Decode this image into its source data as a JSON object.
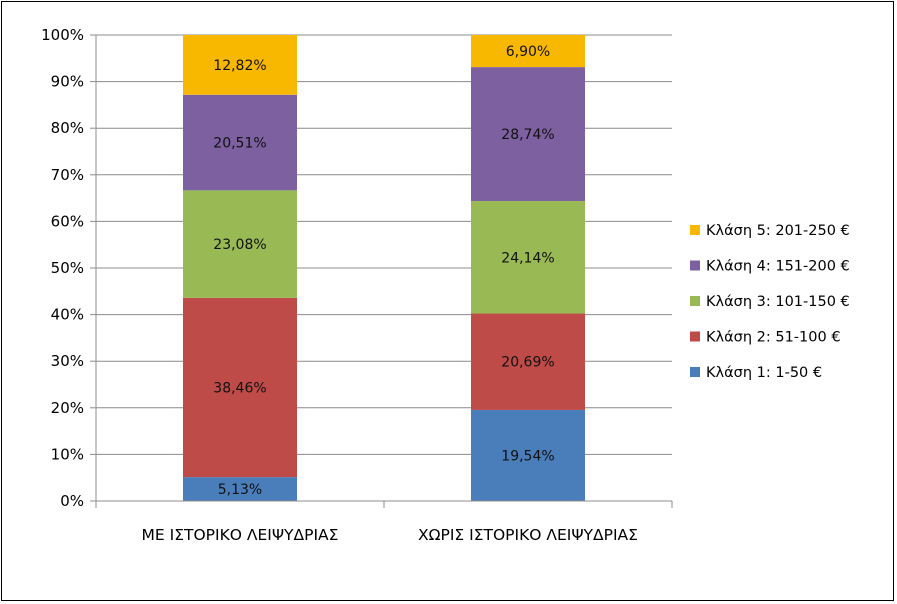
{
  "chart_data": {
    "type": "bar",
    "stacked": true,
    "percent": true,
    "categories": [
      "ΜΕ ΙΣΤΟΡΙΚΟ ΛΕΙΨΥΔΡΙΑΣ",
      "ΧΩΡΙΣ ΙΣΤΟΡΙΚΟ ΛΕΙΨΥΔΡΙΑΣ"
    ],
    "series": [
      {
        "name": "Κλάση 1: 1-50 €",
        "values": [
          5.13,
          19.54
        ],
        "labels": [
          "5,13%",
          "19,54%"
        ],
        "color": "#4a7ebb"
      },
      {
        "name": "Κλάση 2: 51-100 €",
        "values": [
          38.46,
          20.69
        ],
        "labels": [
          "38,46%",
          "20,69%"
        ],
        "color": "#be4b48"
      },
      {
        "name": "Κλάση 3: 101-150 €",
        "values": [
          23.08,
          24.14
        ],
        "labels": [
          "23,08%",
          "24,14%"
        ],
        "color": "#98b954"
      },
      {
        "name": "Κλάση 4: 151-200 €",
        "values": [
          20.51,
          28.74
        ],
        "labels": [
          "20,51%",
          "28,74%"
        ],
        "color": "#7d60a0"
      },
      {
        "name": "Κλάση 5: 201-250 €",
        "values": [
          12.82,
          6.9
        ],
        "labels": [
          "12,82%",
          "6,90%"
        ],
        "color": "#f9b800"
      }
    ],
    "yticks": [
      "0%",
      "10%",
      "20%",
      "30%",
      "40%",
      "50%",
      "60%",
      "70%",
      "80%",
      "90%",
      "100%"
    ],
    "ylim": [
      0,
      100
    ],
    "grid": true,
    "legend_position": "right",
    "legend_order": "reversed"
  }
}
